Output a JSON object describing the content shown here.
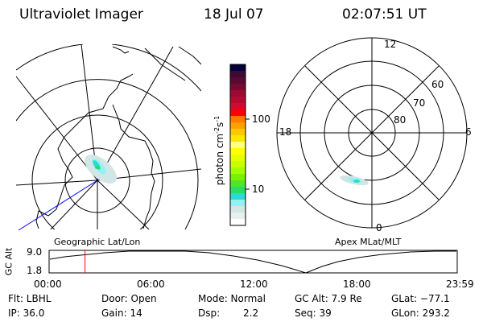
{
  "header": {
    "instrument": "Ultraviolet Imager",
    "date": "18 Jul 07",
    "time": "02:07:51 UT"
  },
  "left_panel": {
    "label": "Geographic Lat/Lon"
  },
  "right_panel": {
    "label": "Apex MLat/MLT",
    "mlt_labels": [
      "12",
      "18",
      "6",
      "0"
    ],
    "lat_labels": [
      "60",
      "70",
      "80"
    ]
  },
  "colorbar": {
    "label": "photon cm",
    "exp1": "-2",
    "unit2": "s",
    "exp2": "-1",
    "ticks": [
      "100",
      "10"
    ],
    "colors": [
      "#00003c",
      "#3c0a32",
      "#5a0a32",
      "#780a32",
      "#9a0a32",
      "#b40a32",
      "#d20a32",
      "#ff0000",
      "#ff7800",
      "#ffa000",
      "#ffc800",
      "#ffe600",
      "#ffff80",
      "#ffff00",
      "#e6ff00",
      "#c8ff00",
      "#a0ff00",
      "#78f000",
      "#50e628",
      "#28dc64",
      "#28dcd2",
      "#96f0f0",
      "#d2e6e6",
      "#e6f0ec",
      "#ffffff"
    ]
  },
  "timeline": {
    "ylabel": "GC Alt",
    "y_ticks": [
      "9.0",
      "1.8"
    ],
    "x_ticks": [
      "00:00",
      "06:00",
      "12:00",
      "18:00",
      "23:59"
    ],
    "current_time_fraction": 0.088,
    "marker_color": "#ff0000"
  },
  "info": {
    "flt": "Flt: LBHL",
    "ip": "IP: 36.0",
    "door": "Door: Open",
    "gain": "Gain: 14",
    "mode": "Mode: Normal",
    "dsp_label": "Dsp:",
    "dsp_value": "2.2",
    "gcalt": "GC Alt: 7.9 Re",
    "seq": "Seq: 39",
    "glat": "GLat: −77.1",
    "glon": "GLon: 293.2"
  }
}
